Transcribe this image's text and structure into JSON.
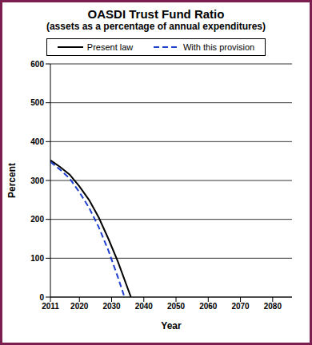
{
  "chart_data": {
    "type": "line",
    "title": "OASDI Trust Fund Ratio",
    "subtitle": "(assets as a percentage of annual expenditures)",
    "x_label": "Year",
    "y_label": "Percent",
    "x": [
      2011,
      2014,
      2017,
      2020,
      2023,
      2026,
      2029,
      2032,
      2034,
      2036
    ],
    "xlim": [
      2011,
      2086
    ],
    "xticks": [
      2011,
      2020,
      2030,
      2040,
      2050,
      2060,
      2070,
      2080
    ],
    "ylim": [
      0,
      600
    ],
    "yticks": [
      0,
      100,
      200,
      300,
      400,
      500,
      600
    ],
    "grid": true,
    "legend": "top",
    "series": [
      {
        "name": "Present law",
        "color": "#000000",
        "line_style": "solid",
        "values": [
          352,
          335,
          315,
          285,
          250,
          205,
          150,
          90,
          45,
          0
        ]
      },
      {
        "name": "With this provision",
        "color": "#1f3fd0",
        "line_style": "dashed",
        "values": [
          348,
          328,
          305,
          270,
          230,
          180,
          120,
          50,
          0,
          null
        ]
      }
    ]
  }
}
